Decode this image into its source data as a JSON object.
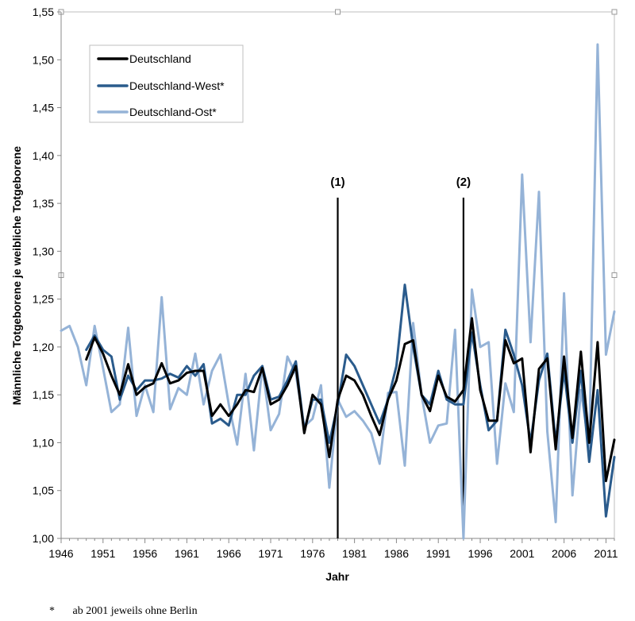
{
  "chart_data": {
    "type": "line",
    "title": "",
    "xlabel": "Jahr",
    "ylabel": "Männliche Totgeborene je weibliche Totgeborene",
    "xlim": [
      1946,
      2012
    ],
    "ylim": [
      1.0,
      1.55
    ],
    "grid": false,
    "legend_position": "top-left",
    "x_ticks": [
      "1946",
      "1951",
      "1956",
      "1961",
      "1966",
      "1971",
      "1976",
      "1981",
      "1986",
      "1991",
      "1996",
      "2001",
      "2006",
      "2011"
    ],
    "y_ticks": [
      "1,00",
      "1,05",
      "1,10",
      "1,15",
      "1,20",
      "1,25",
      "1,30",
      "1,35",
      "1,40",
      "1,45",
      "1,50",
      "1,55"
    ],
    "annotations": [
      {
        "label": "(1)",
        "x": 1979,
        "y_top": 1.356
      },
      {
        "label": "(2)",
        "x": 1994,
        "y_top": 1.356
      }
    ],
    "series": [
      {
        "name": "Deutschland",
        "color": "#000000",
        "x": [
          1949,
          1950,
          1951,
          1952,
          1953,
          1954,
          1955,
          1956,
          1957,
          1958,
          1959,
          1960,
          1961,
          1962,
          1963,
          1964,
          1965,
          1966,
          1967,
          1968,
          1969,
          1970,
          1971,
          1972,
          1973,
          1974,
          1975,
          1976,
          1977,
          1978,
          1979,
          1980,
          1981,
          1982,
          1983,
          1984,
          1985,
          1986,
          1987,
          1988,
          1989,
          1990,
          1991,
          1992,
          1993,
          1994,
          1995,
          1996,
          1997,
          1998,
          1999,
          2000,
          2001,
          2002,
          2003,
          2004,
          2005,
          2006,
          2007,
          2008,
          2009,
          2010,
          2011,
          2012
        ],
        "values": [
          1.187,
          1.21,
          1.193,
          1.17,
          1.15,
          1.182,
          1.15,
          1.158,
          1.162,
          1.183,
          1.162,
          1.165,
          1.173,
          1.175,
          1.175,
          1.128,
          1.14,
          1.128,
          1.14,
          1.155,
          1.153,
          1.178,
          1.14,
          1.145,
          1.16,
          1.18,
          1.11,
          1.15,
          1.14,
          1.085,
          1.145,
          1.17,
          1.165,
          1.15,
          1.128,
          1.108,
          1.145,
          1.165,
          1.203,
          1.207,
          1.15,
          1.133,
          1.17,
          1.148,
          1.143,
          1.155,
          1.23,
          1.155,
          1.123,
          1.123,
          1.207,
          1.183,
          1.188,
          1.09,
          1.177,
          1.188,
          1.093,
          1.19,
          1.105,
          1.195,
          1.1,
          1.205,
          1.06,
          1.103
        ]
      },
      {
        "name": "Deutschland-West*",
        "color": "#2a5b8c",
        "x": [
          1949,
          1950,
          1951,
          1952,
          1953,
          1954,
          1955,
          1956,
          1957,
          1958,
          1959,
          1960,
          1961,
          1962,
          1963,
          1964,
          1965,
          1966,
          1967,
          1968,
          1969,
          1970,
          1971,
          1972,
          1973,
          1974,
          1975,
          1976,
          1977,
          1978,
          1979,
          1980,
          1981,
          1982,
          1983,
          1984,
          1985,
          1986,
          1987,
          1988,
          1989,
          1990,
          1991,
          1992,
          1993,
          1994,
          1995,
          1996,
          1997,
          1998,
          1999,
          2000,
          2001,
          2002,
          2003,
          2004,
          2005,
          2006,
          2007,
          2008,
          2009,
          2010,
          2011,
          2012
        ],
        "values": [
          1.197,
          1.212,
          1.197,
          1.19,
          1.145,
          1.17,
          1.155,
          1.165,
          1.165,
          1.167,
          1.172,
          1.168,
          1.18,
          1.17,
          1.182,
          1.12,
          1.125,
          1.118,
          1.15,
          1.15,
          1.17,
          1.18,
          1.145,
          1.148,
          1.165,
          1.185,
          1.113,
          1.145,
          1.145,
          1.1,
          1.14,
          1.192,
          1.18,
          1.16,
          1.14,
          1.12,
          1.145,
          1.18,
          1.265,
          1.2,
          1.15,
          1.14,
          1.175,
          1.145,
          1.14,
          1.14,
          1.215,
          1.16,
          1.113,
          1.123,
          1.218,
          1.192,
          1.16,
          1.1,
          1.165,
          1.193,
          1.1,
          1.175,
          1.1,
          1.175,
          1.08,
          1.155,
          1.023,
          1.085
        ]
      },
      {
        "name": "Deutschland-Ost*",
        "color": "#95b3d7",
        "x": [
          1946,
          1947,
          1948,
          1949,
          1950,
          1951,
          1952,
          1953,
          1954,
          1955,
          1956,
          1957,
          1958,
          1959,
          1960,
          1961,
          1962,
          1963,
          1964,
          1965,
          1966,
          1967,
          1968,
          1969,
          1970,
          1971,
          1972,
          1973,
          1974,
          1975,
          1976,
          1977,
          1978,
          1979,
          1980,
          1981,
          1982,
          1983,
          1984,
          1985,
          1986,
          1987,
          1988,
          1989,
          1990,
          1991,
          1992,
          1993,
          1994,
          1995,
          1996,
          1997,
          1998,
          1999,
          2000,
          2001,
          2002,
          2003,
          2004,
          2005,
          2006,
          2007,
          2008,
          2009,
          2010,
          2011,
          2012
        ],
        "values": [
          1.217,
          1.222,
          1.2,
          1.16,
          1.222,
          1.178,
          1.132,
          1.14,
          1.22,
          1.128,
          1.16,
          1.132,
          1.252,
          1.135,
          1.157,
          1.15,
          1.193,
          1.14,
          1.175,
          1.192,
          1.14,
          1.098,
          1.172,
          1.092,
          1.18,
          1.113,
          1.13,
          1.19,
          1.172,
          1.117,
          1.125,
          1.16,
          1.053,
          1.145,
          1.127,
          1.133,
          1.123,
          1.11,
          1.078,
          1.152,
          1.153,
          1.076,
          1.225,
          1.15,
          1.1,
          1.118,
          1.12,
          1.218,
          1.0,
          1.26,
          1.2,
          1.205,
          1.078,
          1.162,
          1.132,
          1.38,
          1.205,
          1.362,
          1.112,
          1.017,
          1.256,
          1.045,
          1.155,
          1.095,
          1.516,
          1.192,
          1.237
        ]
      }
    ]
  },
  "footnote": {
    "marker": "*",
    "text": "ab 2001 jeweils ohne Berlin"
  }
}
